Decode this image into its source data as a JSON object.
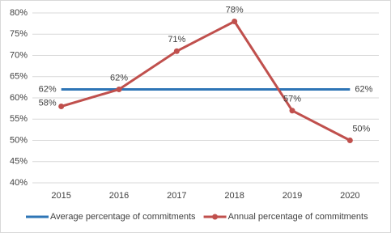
{
  "chart_data": {
    "type": "line",
    "categories": [
      "2015",
      "2016",
      "2017",
      "2018",
      "2019",
      "2020"
    ],
    "series": [
      {
        "name": "Average percentage of commitments",
        "color": "#2e75b6",
        "values": [
          62,
          62,
          62,
          62,
          62,
          62
        ],
        "value_labels": [
          "62%",
          null,
          null,
          null,
          null,
          "62%"
        ]
      },
      {
        "name": "Annual percentage of commitments",
        "color": "#c0504d",
        "values": [
          58,
          62,
          71,
          78,
          57,
          50
        ],
        "value_labels": [
          "58%",
          "62%",
          "71%",
          "78%",
          "57%",
          "50%"
        ]
      }
    ],
    "ylim": [
      40,
      80
    ],
    "yticks": [
      {
        "value": 40,
        "label": "40%"
      },
      {
        "value": 45,
        "label": "45%"
      },
      {
        "value": 50,
        "label": "50%"
      },
      {
        "value": 55,
        "label": "55%"
      },
      {
        "value": 60,
        "label": "60%"
      },
      {
        "value": 65,
        "label": "65%"
      },
      {
        "value": 70,
        "label": "70%"
      },
      {
        "value": 75,
        "label": "75%"
      },
      {
        "value": 80,
        "label": "80%"
      }
    ],
    "grid": true,
    "legend": "bottom"
  }
}
